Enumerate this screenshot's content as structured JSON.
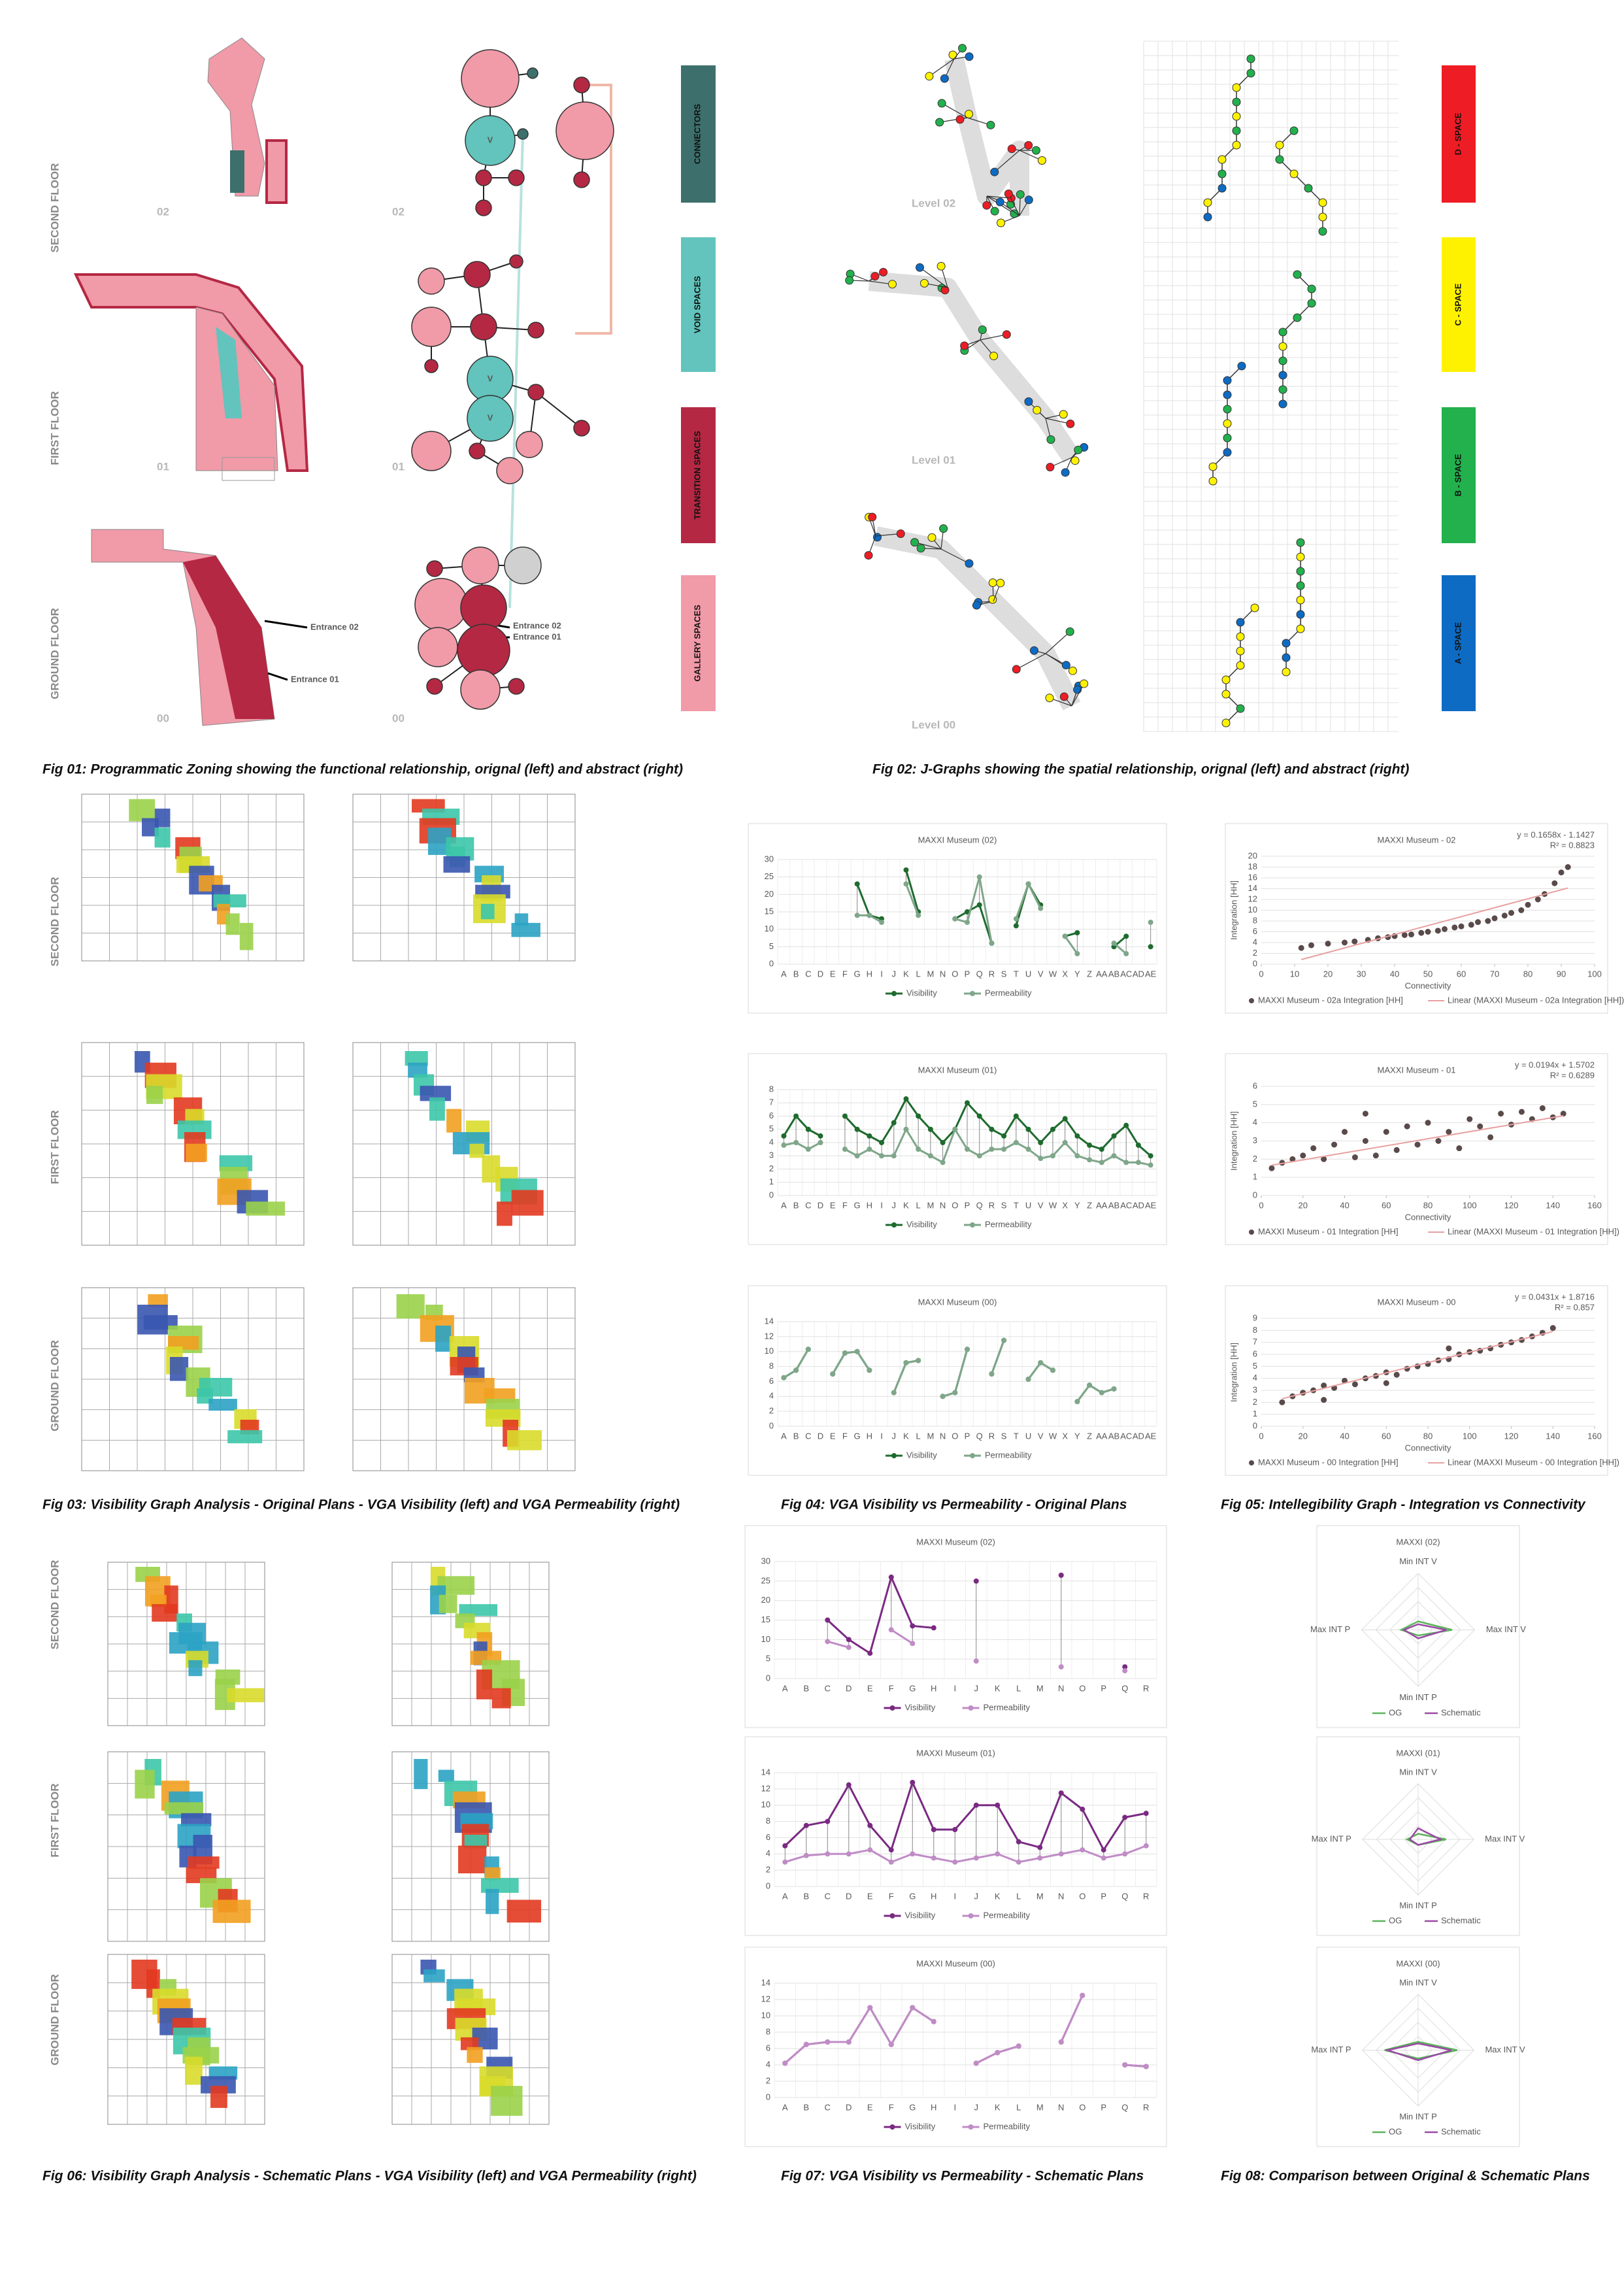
{
  "captions": [
    "Fig 01: Programmatic Zoning showing the functional relationship, orignal (left) and abstract (right)",
    "Fig 02: J-Graphs showing the spatial relationship, orignal (left) and abstract (right)",
    "Fig 03: Visibility Graph Analysis - Original Plans - VGA Visibility (left) and VGA Permeability (right)",
    "Fig 04: VGA Visibility vs Permeability - Original Plans",
    "Fig 05: Intellegibility Graph - Integration vs Connectivity",
    "Fig 06: Visibility Graph Analysis - Schematic Plans - VGA Visibility (left) and VGA Permeability (right)",
    "Fig 07: VGA Visibility vs Permeability - Schematic Plans",
    "Fig 08: Comparison between Original & Schematic Plans"
  ],
  "floors": [
    "SECOND FLOOR",
    "FIRST FLOOR",
    "GROUND FLOOR"
  ],
  "fig01": {
    "levels": [
      "02",
      "01",
      "00"
    ],
    "void_label": "V",
    "entrances": [
      "Entrance 02",
      "Entrance 01"
    ],
    "legend": [
      "CONNECTORS",
      "VOID SPACES",
      "TRANSITION SPACES",
      "GALLERY SPACES"
    ]
  },
  "fig02": {
    "levels": [
      "Level 02",
      "Level 01",
      "Level 00"
    ],
    "legend": [
      "D - SPACE",
      "C - SPACE",
      "B - SPACE",
      "A - SPACE"
    ]
  },
  "chart_data": [
    {
      "type": "line",
      "title": "MAXXI Museum (02)",
      "categories": [
        "A",
        "B",
        "C",
        "D",
        "E",
        "F",
        "G",
        "H",
        "I",
        "J",
        "K",
        "L",
        "M",
        "N",
        "O",
        "P",
        "Q",
        "R",
        "S",
        "T",
        "U",
        "V",
        "W",
        "X",
        "Y",
        "Z",
        "AA",
        "AB",
        "AC",
        "AD",
        "AE"
      ],
      "ylim": [
        0,
        30
      ],
      "yticks": [
        0,
        5,
        10,
        15,
        20,
        25,
        30
      ],
      "series": [
        {
          "name": "Visibility",
          "color": "#1e6b2e",
          "values": [
            null,
            null,
            null,
            null,
            null,
            null,
            23,
            14,
            13,
            null,
            27,
            15,
            null,
            null,
            13,
            15,
            17,
            6,
            null,
            11,
            23,
            17,
            null,
            8,
            9,
            null,
            null,
            5,
            8,
            null,
            5
          ]
        },
        {
          "name": "Permeability",
          "color": "#7fa68a",
          "values": [
            null,
            null,
            null,
            null,
            null,
            null,
            14,
            14,
            12,
            null,
            23,
            14,
            null,
            null,
            13,
            12,
            25,
            6,
            null,
            13,
            23,
            16,
            null,
            8,
            3,
            null,
            null,
            6,
            3,
            null,
            12
          ]
        }
      ]
    },
    {
      "type": "line",
      "title": "MAXXI Museum (01)",
      "categories": [
        "A",
        "B",
        "C",
        "D",
        "E",
        "F",
        "G",
        "H",
        "I",
        "J",
        "K",
        "L",
        "M",
        "N",
        "O",
        "P",
        "Q",
        "R",
        "S",
        "T",
        "U",
        "V",
        "W",
        "X",
        "Y",
        "Z",
        "AA",
        "AB",
        "AC",
        "AD",
        "AE"
      ],
      "ylim": [
        0,
        8
      ],
      "yticks": [
        0,
        1,
        2,
        3,
        4,
        5,
        6,
        7,
        8
      ],
      "series": [
        {
          "name": "Visibility",
          "color": "#1e6b2e",
          "values": [
            4.5,
            6,
            5,
            4.5,
            null,
            6,
            5,
            4.5,
            4,
            5.5,
            7.3,
            6,
            5,
            4,
            5,
            7,
            6,
            5,
            4.5,
            6,
            5,
            4,
            5,
            5.8,
            4.5,
            3.8,
            3.5,
            4.5,
            5.3,
            3.8,
            3
          ]
        },
        {
          "name": "Permeability",
          "color": "#7fa68a",
          "values": [
            3.8,
            4,
            3.5,
            4,
            null,
            3.5,
            3,
            3.5,
            3,
            3,
            5,
            3.5,
            3,
            2.5,
            5,
            3.5,
            3,
            3.5,
            3.5,
            4,
            3.5,
            2.8,
            3,
            4,
            3,
            2.7,
            2.5,
            3,
            2.5,
            2.5,
            2.3
          ]
        }
      ]
    },
    {
      "type": "line",
      "title": "MAXXI Museum (00)",
      "categories": [
        "A",
        "B",
        "C",
        "D",
        "E",
        "F",
        "G",
        "H",
        "I",
        "J",
        "K",
        "L",
        "M",
        "N",
        "O",
        "P",
        "Q",
        "R",
        "S",
        "T",
        "U",
        "V",
        "W",
        "X",
        "Y",
        "Z",
        "AA",
        "AB",
        "AC",
        "AD",
        "AE"
      ],
      "ylim": [
        0,
        14
      ],
      "yticks": [
        0,
        2,
        4,
        6,
        8,
        10,
        12,
        14
      ],
      "series": [
        {
          "name": "Visibility",
          "color": "#1e6b2e",
          "values": [
            6.5,
            7.5,
            10.3,
            null,
            7,
            9.8,
            10,
            7.5,
            null,
            4.5,
            8.5,
            8.8,
            null,
            4,
            4.5,
            10.3,
            null,
            7,
            11.5,
            null,
            6.3,
            8.5,
            7.5,
            null,
            3.3,
            5.5,
            4.5,
            5,
            null,
            null,
            null
          ]
        },
        {
          "name": "Permeability",
          "color": "#7fa68a",
          "values": [
            6.5,
            7.5,
            10.3,
            null,
            7,
            9.8,
            10,
            7.5,
            null,
            4.5,
            8.5,
            8.8,
            null,
            4,
            4.5,
            10.3,
            null,
            7,
            11.5,
            null,
            6.3,
            8.5,
            7.5,
            null,
            3.3,
            5.5,
            4.5,
            5,
            null,
            null,
            null
          ]
        }
      ]
    },
    {
      "type": "scatter",
      "title": "MAXXI Museum - 02",
      "x_label": "Connectivity",
      "y_label": "Integration [HH]",
      "xlim": [
        0,
        100
      ],
      "xticks": [
        0,
        10,
        20,
        30,
        40,
        50,
        60,
        70,
        80,
        90,
        100
      ],
      "ylim": [
        0,
        20
      ],
      "yticks": [
        0,
        2,
        4,
        6,
        8,
        10,
        12,
        14,
        16,
        18,
        20
      ],
      "series": [
        {
          "name": "MAXXI Museum - 02a Integration [HH]",
          "color": "#5a4a4a",
          "x": [
            12,
            15,
            20,
            25,
            28,
            32,
            35,
            38,
            40,
            43,
            45,
            48,
            50,
            53,
            55,
            58,
            60,
            63,
            65,
            68,
            70,
            73,
            75,
            78,
            80,
            83,
            85,
            88,
            90,
            92
          ],
          "y": [
            3,
            3.5,
            3.8,
            4,
            4.2,
            4.5,
            4.8,
            5,
            5.2,
            5.4,
            5.5,
            5.8,
            6,
            6.2,
            6.5,
            6.8,
            7,
            7.3,
            7.8,
            8,
            8.5,
            9,
            9.5,
            10,
            11,
            12,
            13,
            15,
            17,
            18
          ]
        }
      ],
      "trend": {
        "name": "Linear (MAXXI Museum - 02a Integration [HH])",
        "color": "#e8a0a0",
        "slope": 0.1658,
        "intercept": -1.1427,
        "equation": "y = 0.1658x - 1.1427",
        "r2": "R² = 0.8823"
      }
    },
    {
      "type": "scatter",
      "title": "MAXXI Museum - 01",
      "x_label": "Connectivity",
      "y_label": "Integration [HH]",
      "xlim": [
        0,
        160
      ],
      "xticks": [
        0,
        20,
        40,
        60,
        80,
        100,
        120,
        140,
        160
      ],
      "ylim": [
        0,
        6
      ],
      "yticks": [
        0,
        1,
        2,
        3,
        4,
        5,
        6
      ],
      "series": [
        {
          "name": "MAXXI Museum - 01 Integration [HH]",
          "color": "#5a4a4a",
          "x": [
            5,
            10,
            15,
            20,
            25,
            30,
            35,
            40,
            45,
            50,
            55,
            60,
            65,
            70,
            75,
            80,
            85,
            90,
            95,
            100,
            105,
            110,
            115,
            120,
            125,
            130,
            135,
            140,
            145,
            50
          ],
          "y": [
            1.5,
            1.8,
            2,
            2.2,
            2.6,
            2,
            2.8,
            3.5,
            2.1,
            3,
            2.2,
            3.5,
            2.5,
            3.8,
            2.8,
            4,
            3,
            3.5,
            2.6,
            4.2,
            3.8,
            3.2,
            4.5,
            3.9,
            4.6,
            4.2,
            4.8,
            4.3,
            4.5,
            4.5
          ]
        }
      ],
      "trend": {
        "name": "Linear (MAXXI Museum - 01 Integration [HH])",
        "color": "#e8a0a0",
        "slope": 0.0194,
        "intercept": 1.5702,
        "equation": "y = 0.0194x + 1.5702",
        "r2": "R² = 0.6289"
      }
    },
    {
      "type": "scatter",
      "title": "MAXXI Museum - 00",
      "x_label": "Connectivity",
      "y_label": "Integration [HH]",
      "xlim": [
        0,
        160
      ],
      "xticks": [
        0,
        20,
        40,
        60,
        80,
        100,
        120,
        140,
        160
      ],
      "ylim": [
        0,
        9
      ],
      "yticks": [
        0,
        1,
        2,
        3,
        4,
        5,
        6,
        7,
        8,
        9
      ],
      "series": [
        {
          "name": "MAXXI Museum - 00 Integration [HH]",
          "color": "#5a4a4a",
          "x": [
            10,
            15,
            20,
            25,
            30,
            35,
            40,
            45,
            50,
            55,
            60,
            65,
            70,
            75,
            80,
            85,
            90,
            95,
            100,
            105,
            110,
            115,
            120,
            125,
            130,
            135,
            140,
            30,
            60,
            90
          ],
          "y": [
            2,
            2.5,
            2.8,
            3,
            3.4,
            3.2,
            3.8,
            3.5,
            4,
            4.2,
            4.5,
            4.3,
            4.8,
            5,
            5.2,
            5.5,
            5.6,
            6,
            6.2,
            6.3,
            6.5,
            6.8,
            7,
            7.2,
            7.5,
            7.8,
            8.2,
            2.2,
            3.6,
            6.5
          ]
        }
      ],
      "trend": {
        "name": "Linear (MAXXI Museum - 00 Integration [HH])",
        "color": "#e8a0a0",
        "slope": 0.0431,
        "intercept": 1.8716,
        "equation": "y = 0.0431x + 1.8716",
        "r2": "R² = 0.857"
      }
    },
    {
      "type": "line",
      "title": "MAXXI Museum (02)",
      "categories": [
        "A",
        "B",
        "C",
        "D",
        "E",
        "F",
        "G",
        "H",
        "I",
        "J",
        "K",
        "L",
        "M",
        "N",
        "O",
        "P",
        "Q",
        "R"
      ],
      "ylim": [
        0,
        30
      ],
      "yticks": [
        0,
        5,
        10,
        15,
        20,
        25,
        30
      ],
      "series": [
        {
          "name": "Visibility",
          "color": "#7a2a83",
          "values": [
            null,
            null,
            15,
            10,
            6.5,
            26,
            13.5,
            13,
            null,
            25,
            null,
            null,
            null,
            26.5,
            null,
            null,
            3,
            null
          ]
        },
        {
          "name": "Permeability",
          "color": "#c08cc6",
          "values": [
            null,
            null,
            9.5,
            8,
            null,
            12.5,
            9,
            null,
            null,
            4.5,
            null,
            null,
            null,
            3,
            null,
            null,
            2,
            null
          ]
        }
      ]
    },
    {
      "type": "line",
      "title": "MAXXI Museum (01)",
      "categories": [
        "A",
        "B",
        "C",
        "D",
        "E",
        "F",
        "G",
        "H",
        "I",
        "J",
        "K",
        "L",
        "M",
        "N",
        "O",
        "P",
        "Q",
        "R"
      ],
      "ylim": [
        0,
        14
      ],
      "yticks": [
        0,
        2,
        4,
        6,
        8,
        10,
        12,
        14
      ],
      "series": [
        {
          "name": "Visibility",
          "color": "#7a2a83",
          "values": [
            5,
            7.5,
            8,
            12.5,
            7.5,
            4.5,
            12.8,
            7,
            7,
            10,
            10,
            5.5,
            4.8,
            11.5,
            9.5,
            4.5,
            8.5,
            9
          ]
        },
        {
          "name": "Permeability",
          "color": "#c08cc6",
          "values": [
            3,
            3.8,
            4,
            4,
            4.5,
            3,
            4,
            3.5,
            3,
            3.5,
            4,
            3,
            3.5,
            4,
            4.5,
            3.5,
            4,
            5
          ]
        }
      ]
    },
    {
      "type": "line",
      "title": "MAXXI Museum (00)",
      "categories": [
        "A",
        "B",
        "C",
        "D",
        "E",
        "F",
        "G",
        "H",
        "I",
        "J",
        "K",
        "L",
        "M",
        "N",
        "O",
        "P",
        "Q",
        "R"
      ],
      "ylim": [
        0,
        14
      ],
      "yticks": [
        0,
        2,
        4,
        6,
        8,
        10,
        12,
        14
      ],
      "series": [
        {
          "name": "Visibility",
          "color": "#7a2a83",
          "values": [
            4.2,
            6.5,
            6.8,
            6.8,
            11,
            6.5,
            11,
            9.3,
            null,
            4.2,
            5.5,
            6.3,
            null,
            6.8,
            12.5,
            null,
            4,
            3.8
          ]
        },
        {
          "name": "Permeability",
          "color": "#c08cc6",
          "values": [
            4.2,
            6.5,
            6.8,
            6.8,
            11,
            6.5,
            11,
            9.3,
            null,
            4.2,
            5.5,
            6.3,
            null,
            6.8,
            12.5,
            null,
            4,
            3.8
          ]
        }
      ]
    },
    {
      "type": "radar",
      "title": "MAXXI (02)",
      "axes": [
        "Min INT V",
        "Max INT V",
        "Min INT P",
        "Max INT P"
      ],
      "rlim": [
        0,
        10
      ],
      "series": [
        {
          "name": "OG",
          "color": "#5bb35b",
          "values": [
            1.5,
            6,
            1,
            3
          ]
        },
        {
          "name": "Schematic",
          "color": "#9b4aa5",
          "values": [
            1,
            5,
            1.5,
            2.5
          ]
        }
      ]
    },
    {
      "type": "radar",
      "title": "MAXXI (01)",
      "axes": [
        "Min INT V",
        "Max INT V",
        "Min INT P",
        "Max INT P"
      ],
      "rlim": [
        0,
        10
      ],
      "series": [
        {
          "name": "OG",
          "color": "#5bb35b",
          "values": [
            1,
            5,
            1,
            2
          ]
        },
        {
          "name": "Schematic",
          "color": "#9b4aa5",
          "values": [
            2,
            4,
            1,
            1.5
          ]
        }
      ]
    },
    {
      "type": "radar",
      "title": "MAXXI (00)",
      "axes": [
        "Min INT V",
        "Max INT V",
        "Min INT P",
        "Max INT P"
      ],
      "rlim": [
        0,
        10
      ],
      "series": [
        {
          "name": "OG",
          "color": "#5bb35b",
          "values": [
            1.5,
            7,
            1.5,
            6
          ]
        },
        {
          "name": "Schematic",
          "color": "#9b4aa5",
          "values": [
            1.2,
            6,
            1.8,
            5.5
          ]
        }
      ]
    }
  ]
}
